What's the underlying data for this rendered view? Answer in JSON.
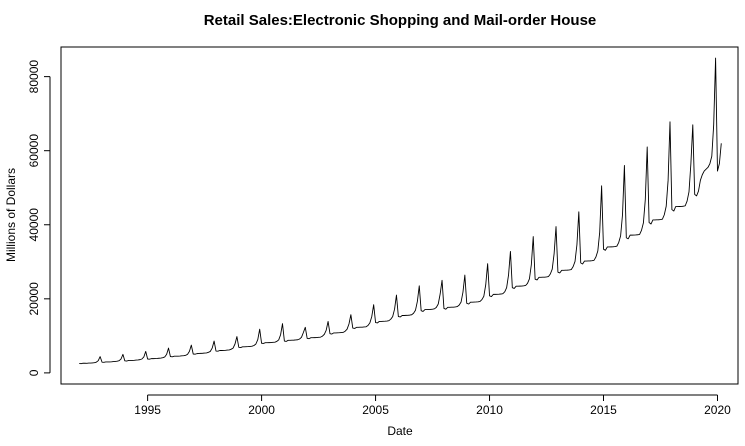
{
  "chart_data": {
    "type": "line",
    "title": "Retail Sales:Electronic Shopping and Mail-order House",
    "xlabel": "Date",
    "ylabel": "Millions of Dollars",
    "xlim": [
      1991.2,
      2020.9
    ],
    "ylim": [
      -3000,
      88000
    ],
    "x_ticks": [
      1995,
      2000,
      2005,
      2010,
      2015,
      2020
    ],
    "x_tick_labels": [
      "1995",
      "2000",
      "2005",
      "2010",
      "2015",
      "2020"
    ],
    "y_ticks": [
      0,
      20000,
      40000,
      60000,
      80000
    ],
    "y_tick_labels": [
      "0",
      "20000",
      "40000",
      "60000",
      "80000"
    ],
    "grid": false,
    "legend": "none",
    "line_color": "#000000",
    "x_start": "1992-01",
    "x_step": "month",
    "series": [
      {
        "values": [
          2550,
          2480,
          2620,
          2600,
          2580,
          2640,
          2650,
          2700,
          2750,
          2900,
          3300,
          4400,
          2900,
          2850,
          2950,
          2950,
          2970,
          3000,
          3050,
          3100,
          3150,
          3300,
          3750,
          5000,
          3250,
          3200,
          3350,
          3350,
          3370,
          3400,
          3450,
          3500,
          3580,
          3750,
          4300,
          5800,
          3750,
          3700,
          3850,
          3850,
          3870,
          3900,
          3950,
          4000,
          4100,
          4300,
          5000,
          6700,
          4400,
          4350,
          4500,
          4500,
          4520,
          4550,
          4600,
          4650,
          4750,
          5000,
          5800,
          7500,
          5100,
          5050,
          5200,
          5250,
          5270,
          5300,
          5350,
          5400,
          5550,
          5800,
          6700,
          8600,
          5900,
          5850,
          6050,
          6050,
          6070,
          6100,
          6150,
          6200,
          6400,
          6700,
          7800,
          9800,
          6900,
          6850,
          7050,
          7050,
          7070,
          7100,
          7150,
          7200,
          7400,
          7800,
          9000,
          11800,
          8000,
          7950,
          8150,
          8150,
          8170,
          8200,
          8250,
          8300,
          8500,
          8900,
          10300,
          13300,
          8600,
          8500,
          8800,
          8800,
          8820,
          8850,
          8900,
          8950,
          9150,
          9600,
          10900,
          12300,
          9300,
          9250,
          9500,
          9500,
          9520,
          9550,
          9600,
          9650,
          9900,
          10400,
          11500,
          13900,
          10600,
          10500,
          10800,
          10800,
          10830,
          10850,
          10900,
          10950,
          11250,
          11800,
          13200,
          15700,
          12100,
          12000,
          12300,
          12300,
          12330,
          12350,
          12400,
          12450,
          12800,
          13500,
          15200,
          18400,
          13600,
          13500,
          13900,
          13900,
          13930,
          13950,
          14000,
          14100,
          14500,
          15200,
          17200,
          21000,
          15200,
          15100,
          15500,
          15500,
          15530,
          15550,
          15600,
          15700,
          16100,
          16900,
          19300,
          23500,
          16800,
          16600,
          17100,
          17100,
          17130,
          17150,
          17200,
          17300,
          17700,
          18600,
          21300,
          25000,
          17400,
          17200,
          17700,
          17700,
          17730,
          17750,
          17800,
          17900,
          18300,
          19100,
          21800,
          26400,
          18800,
          18600,
          19100,
          19100,
          19130,
          19150,
          19200,
          19300,
          19800,
          20700,
          23800,
          29500,
          20800,
          20600,
          21200,
          21200,
          21230,
          21250,
          21300,
          21400,
          21900,
          23000,
          26400,
          32800,
          23000,
          22800,
          23400,
          23400,
          23430,
          23450,
          23500,
          23600,
          24200,
          25400,
          29200,
          36800,
          25300,
          25100,
          25800,
          25800,
          25830,
          25850,
          25900,
          26000,
          26700,
          28000,
          32200,
          39500,
          27200,
          27000,
          27700,
          27700,
          27730,
          27750,
          27800,
          27900,
          28700,
          30100,
          34600,
          43500,
          29700,
          29400,
          30200,
          30200,
          30230,
          30250,
          30300,
          30400,
          31300,
          32900,
          38000,
          50500,
          33400,
          33100,
          34000,
          34000,
          34030,
          34050,
          34100,
          34200,
          35200,
          37000,
          42700,
          56000,
          36500,
          36200,
          37200,
          37200,
          37230,
          37250,
          37300,
          37400,
          38500,
          40500,
          46800,
          61000,
          40600,
          40200,
          41300,
          41300,
          41330,
          41350,
          41400,
          41500,
          42700,
          45000,
          52000,
          67800,
          44100,
          43700,
          44900,
          44900,
          44930,
          44950,
          45000,
          45100,
          46400,
          48900,
          56500,
          67000,
          48200,
          47800,
          49100,
          52000,
          53500,
          54500,
          55000,
          55500,
          56500,
          58500,
          67000,
          85000,
          54500,
          56500,
          62000
        ]
      }
    ]
  }
}
